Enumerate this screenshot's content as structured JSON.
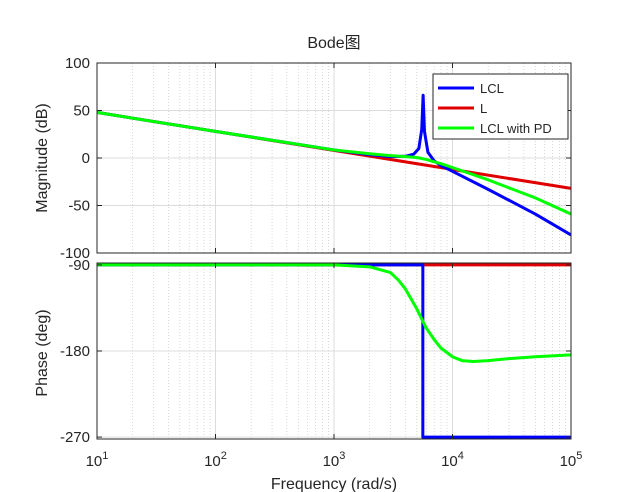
{
  "chart_data": {
    "type": "line",
    "title": "Bode图",
    "xlabel": "Frequency  (rad/s)",
    "xscale": "log",
    "xlim": [
      10,
      100000
    ],
    "x_ticks": [
      {
        "value": 10,
        "base": "10",
        "exp": "1"
      },
      {
        "value": 100,
        "base": "10",
        "exp": "2"
      },
      {
        "value": 1000,
        "base": "10",
        "exp": "3"
      },
      {
        "value": 10000,
        "base": "10",
        "exp": "4"
      },
      {
        "value": 100000,
        "base": "10",
        "exp": "5"
      }
    ],
    "series_meta": [
      {
        "name": "LCL",
        "color": "#0000ff"
      },
      {
        "name": "L",
        "color": "#e00000"
      },
      {
        "name": "LCL with PD",
        "color": "#00ff00"
      }
    ],
    "legend_position": "top-right",
    "subplots": [
      {
        "id": "magnitude",
        "ylabel": "Magnitude (dB)",
        "ylim": [
          -100,
          100
        ],
        "yticks": [
          100,
          50,
          0,
          -50,
          -100
        ],
        "series": [
          {
            "name": "L",
            "x": [
              10,
              100000
            ],
            "y": [
              48,
              -32
            ]
          },
          {
            "name": "LCL",
            "x": [
              10,
              100,
              1000,
              2000,
              3000,
              4000,
              4700,
              5200,
              5500,
              5650,
              5800,
              6200,
              7000,
              8000,
              10000,
              20000,
              50000,
              100000
            ],
            "y": [
              48,
              28,
              8.5,
              3.5,
              1.5,
              1.8,
              4,
              10,
              30,
              66,
              28,
              6,
              -3,
              -8,
              -14,
              -33,
              -59,
              -81
            ]
          },
          {
            "name": "LCL with PD",
            "x": [
              10,
              100,
              1000,
              2000,
              3000,
              4000,
              5000,
              6000,
              7000,
              8000,
              10000,
              20000,
              50000,
              100000
            ],
            "y": [
              48,
              28,
              8.5,
              4.5,
              2.5,
              1.5,
              0.5,
              -1.5,
              -4,
              -6,
              -10,
              -23,
              -42,
              -59
            ]
          }
        ]
      },
      {
        "id": "phase",
        "ylabel": "Phase (deg)",
        "ylim": [
          -272,
          -88
        ],
        "yticks": [
          -90,
          -180,
          -270
        ],
        "series": [
          {
            "name": "L",
            "x": [
              10,
              100000
            ],
            "y": [
              -90,
              -90
            ]
          },
          {
            "name": "LCL",
            "x": [
              10,
              5620,
              5620,
              100000
            ],
            "y": [
              -90,
              -90,
              -270,
              -270
            ]
          },
          {
            "name": "LCL with PD",
            "x": [
              10,
              1000,
              2000,
              3000,
              3500,
              4000,
              5000,
              6000,
              7000,
              8000,
              10000,
              12000,
              15000,
              20000,
              30000,
              50000,
              100000
            ],
            "y": [
              -90,
              -90,
              -92,
              -98,
              -106,
              -115,
              -136,
              -156,
              -168,
              -177,
              -186,
              -190,
              -191,
              -190,
              -188,
              -186,
              -184
            ]
          }
        ]
      }
    ]
  }
}
